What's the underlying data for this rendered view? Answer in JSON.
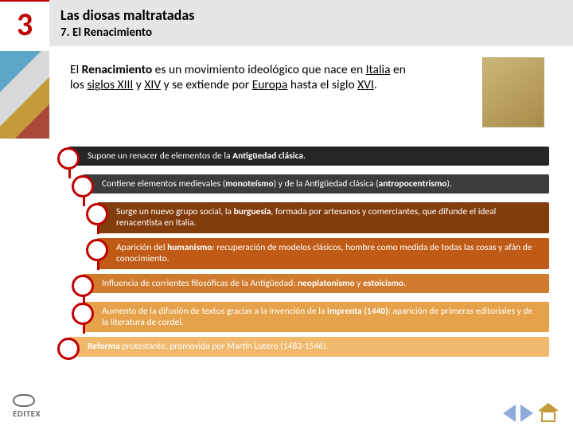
{
  "colors": {
    "accent": "#c00000",
    "headerBg": "#e7e6e6",
    "nav": "#8faadc",
    "home": "#c49a3a"
  },
  "header": {
    "chapter": "3",
    "title": "Las diosas maltratadas",
    "subtitle": "7. El Renacimiento"
  },
  "intro": {
    "html": "El <b>Renacimiento</b> es un movimiento ideológico que nace en <span class=\"ul\">Italia</span> en los <span class=\"ul\">siglos XIII</span> y <span class=\"ul\">XIV</span> y se extiende por <span class=\"ul\">Europa</span> hasta el siglo <span class=\"ul\">XVI</span>."
  },
  "points": [
    {
      "indent": 0,
      "bg": "#262626",
      "html": "Supone un renacer de elementos de la <b>Antigüedad clásica</b>."
    },
    {
      "indent": 1,
      "bg": "#3c3c3c",
      "html": "Contiene elementos medievales (<b>monoteísmo</b>) y de la Antigüedad clásica (<b>antropocentrismo</b>)."
    },
    {
      "indent": 2,
      "bg": "#833c0c",
      "html": "Surge un nuevo grupo social, la <b>burguesía</b>, formada por artesanos y comerciantes, que difunde el ideal renacentista en Italia."
    },
    {
      "indent": 2,
      "bg": "#bf5b17",
      "html": "Aparición del <b>humanismo</b>: recuperación de modelos clásicos, hombre como medida de todas las cosas y afán de conocimiento."
    },
    {
      "indent": 1,
      "bg": "#d07b2e",
      "html": "Influencia de corrientes filosóficas de la Antigüedad: <b>neoplatonismo</b> y <b>estoicismo</b>."
    },
    {
      "indent": 1,
      "bg": "#e6a24a",
      "html": "Aumento de la difusión de textos gracias a la invención de la <b>imprenta (1440)</b>: aparición de primeras editoriales y de la literatura de cordel."
    },
    {
      "indent": 0,
      "bg": "#f0b96e",
      "html": "<b>Reforma</b> protestante, promovida por Martín Lutero (1483-1546)."
    }
  ],
  "footer": {
    "logo": "EDITEX"
  }
}
